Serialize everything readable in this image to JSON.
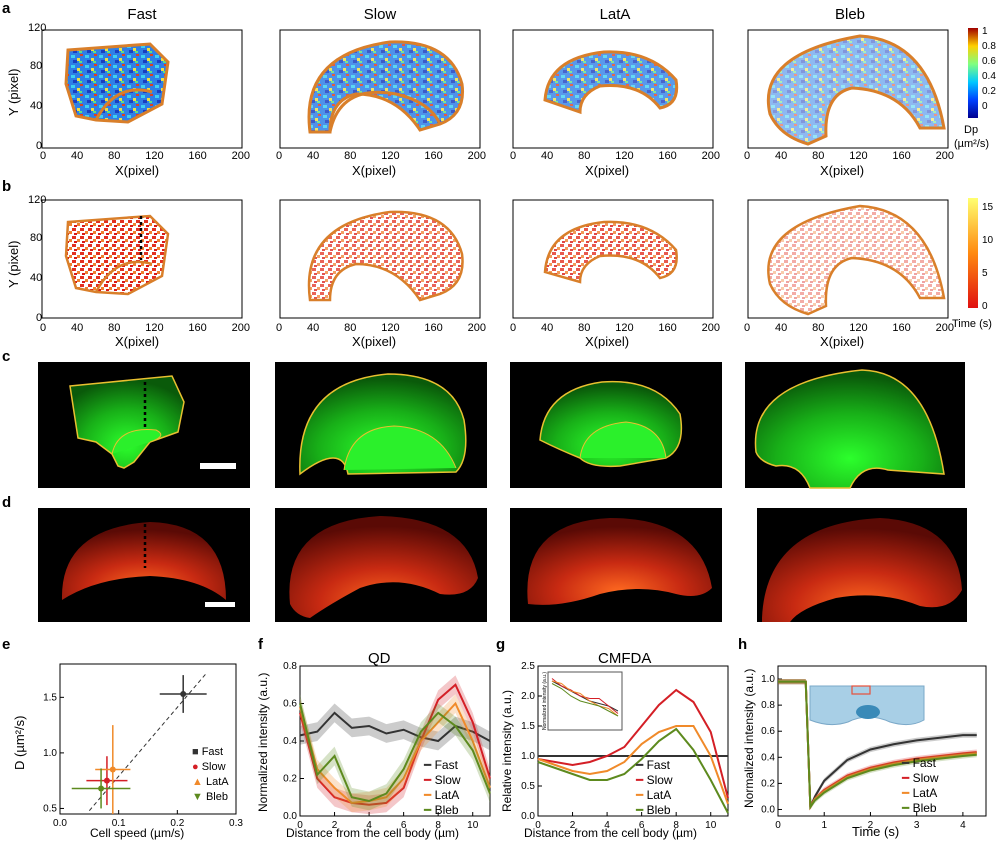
{
  "panels": {
    "a": "a",
    "b": "b",
    "c": "c",
    "d": "d",
    "e": "e",
    "f": "f",
    "g": "g",
    "h": "h"
  },
  "conditions": [
    "Fast",
    "Slow",
    "LatA",
    "Bleb"
  ],
  "colors": {
    "cell_outline": "#d97f2a",
    "fast": "#333333",
    "slow": "#d41f26",
    "latA": "#f08a2a",
    "bleb": "#5d8a1e",
    "fluor_green": "#1fd21f",
    "actin_red": "#e2401e"
  },
  "panel_a": {
    "xlabel": "X(pixel)",
    "ylabel": "Y (pixel)",
    "xticks": [
      "0",
      "40",
      "80",
      "120",
      "160",
      "200"
    ],
    "yticks": [
      "0",
      "40",
      "80",
      "120"
    ],
    "colorbar": {
      "label_line1": "Dp",
      "label_line2": "(µm²/s)",
      "ticks": [
        "0",
        "0.2",
        "0.4",
        "0.6",
        "0.8",
        "1"
      ]
    }
  },
  "panel_b": {
    "xlabel": "X(pixel)",
    "ylabel": "Y (pixel)",
    "xticks": [
      "0",
      "40",
      "80",
      "120",
      "160",
      "200"
    ],
    "yticks": [
      "0",
      "40",
      "80",
      "120"
    ],
    "colorbar": {
      "label": "Time (s)",
      "ticks": [
        "0",
        "5",
        "10",
        "15"
      ]
    }
  },
  "panel_e": {
    "xlabel": "Cell speed (µm/s)",
    "ylabel": "D (µm²/s)",
    "xticks": [
      "0.0",
      "0.1",
      "0.2",
      "0.3"
    ],
    "yticks": [
      "0.5",
      "1.0",
      "1.5"
    ],
    "legend": [
      "Fast",
      "Slow",
      "LatA",
      "Bleb"
    ]
  },
  "panel_f": {
    "title": "QD",
    "xlabel": "Distance from the cell body (µm)",
    "ylabel": "Normalized intensity (a.u.)",
    "xticks": [
      "0",
      "2",
      "4",
      "6",
      "8",
      "10"
    ],
    "yticks": [
      "0.0",
      "0.2",
      "0.4",
      "0.6",
      "0.8"
    ],
    "legend": [
      "Fast",
      "Slow",
      "LatA",
      "Bleb"
    ]
  },
  "panel_g": {
    "title": "CMFDA",
    "xlabel": "Distance from the cell body (µm)",
    "ylabel": "Relative intensity (a.u.)",
    "xticks": [
      "0",
      "2",
      "4",
      "6",
      "8",
      "10"
    ],
    "yticks": [
      "0.0",
      "0.5",
      "1.0",
      "1.5",
      "2.0",
      "2.5"
    ],
    "inset_ylabel": "Normalized intensity (a.u.)",
    "legend": [
      "Fast",
      "Slow",
      "LatA",
      "Bleb"
    ]
  },
  "panel_h": {
    "xlabel": "Time (s)",
    "ylabel": "Normalized intensity (a.u.)",
    "xticks": [
      "0",
      "1",
      "2",
      "3",
      "4"
    ],
    "yticks": [
      "0.0",
      "0.2",
      "0.4",
      "0.6",
      "0.8",
      "1.0"
    ],
    "legend": [
      "Fast",
      "Slow",
      "LatA",
      "Bleb"
    ]
  },
  "chart_data": [
    {
      "type": "scatter",
      "panel": "e",
      "xlabel": "Cell speed (µm/s)",
      "ylabel": "D (µm²/s)",
      "xlim": [
        0,
        0.3
      ],
      "ylim": [
        0.45,
        1.8
      ],
      "series": [
        {
          "name": "Fast",
          "x": [
            0.21
          ],
          "y": [
            1.53
          ],
          "xerr": [
            0.04
          ],
          "yerr": [
            0.17
          ]
        },
        {
          "name": "Slow",
          "x": [
            0.08
          ],
          "y": [
            0.75
          ],
          "xerr": [
            0.035
          ],
          "yerr": [
            0.22
          ]
        },
        {
          "name": "LatA",
          "x": [
            0.09
          ],
          "y": [
            0.85
          ],
          "xerr": [
            0.03
          ],
          "yerr": [
            0.4
          ]
        },
        {
          "name": "Bleb",
          "x": [
            0.07
          ],
          "y": [
            0.68
          ],
          "xerr": [
            0.05
          ],
          "yerr": [
            0.18
          ]
        }
      ],
      "fit_line": {
        "x": [
          0.05,
          0.25
        ],
        "y": [
          0.48,
          1.72
        ]
      }
    },
    {
      "type": "line",
      "panel": "f",
      "title": "QD",
      "xlabel": "Distance from the cell body (µm)",
      "ylabel": "Normalized intensity (a.u.)",
      "xlim": [
        0,
        11
      ],
      "ylim": [
        0,
        0.8
      ],
      "x": [
        0,
        1,
        2,
        3,
        4,
        5,
        6,
        7,
        8,
        9,
        10,
        11
      ],
      "series": [
        {
          "name": "Fast",
          "values": [
            0.43,
            0.45,
            0.55,
            0.47,
            0.48,
            0.44,
            0.46,
            0.42,
            0.4,
            0.48,
            0.45,
            0.4
          ]
        },
        {
          "name": "Slow",
          "values": [
            0.55,
            0.2,
            0.1,
            0.07,
            0.06,
            0.07,
            0.15,
            0.4,
            0.62,
            0.7,
            0.5,
            0.2
          ]
        },
        {
          "name": "LatA",
          "values": [
            0.58,
            0.25,
            0.15,
            0.07,
            0.08,
            0.1,
            0.2,
            0.4,
            0.5,
            0.6,
            0.4,
            0.15
          ]
        },
        {
          "name": "Bleb",
          "values": [
            0.6,
            0.22,
            0.32,
            0.1,
            0.08,
            0.12,
            0.25,
            0.45,
            0.55,
            0.48,
            0.35,
            0.12
          ]
        }
      ]
    },
    {
      "type": "line",
      "panel": "g",
      "title": "CMFDA",
      "xlabel": "Distance from the cell body (µm)",
      "ylabel": "Relative intensity (a.u.)",
      "xlim": [
        0,
        11
      ],
      "ylim": [
        0,
        2.5
      ],
      "x": [
        0,
        1,
        2,
        3,
        4,
        5,
        6,
        7,
        8,
        9,
        10,
        11
      ],
      "series": [
        {
          "name": "Fast",
          "values": [
            1.0,
            1.0,
            1.0,
            1.0,
            1.0,
            1.0,
            1.0,
            1.0,
            1.0,
            1.0,
            1.0,
            1.0
          ]
        },
        {
          "name": "Slow",
          "values": [
            0.95,
            0.9,
            0.85,
            0.9,
            1.0,
            1.15,
            1.5,
            1.85,
            2.1,
            1.9,
            1.4,
            0.3
          ]
        },
        {
          "name": "LatA",
          "values": [
            0.95,
            0.85,
            0.75,
            0.7,
            0.75,
            0.9,
            1.2,
            1.4,
            1.5,
            1.5,
            1.0,
            0.2
          ]
        },
        {
          "name": "Bleb",
          "values": [
            0.9,
            0.8,
            0.7,
            0.6,
            0.6,
            0.7,
            0.95,
            1.25,
            1.45,
            1.1,
            0.6,
            0.05
          ]
        }
      ],
      "inset": {
        "series": [
          "Fast",
          "Slow",
          "LatA",
          "Bleb"
        ]
      }
    },
    {
      "type": "line",
      "panel": "h",
      "xlabel": "Time (s)",
      "ylabel": "Normalized intensity (a.u.)",
      "xlim": [
        0,
        4.5
      ],
      "ylim": [
        -0.05,
        1.1
      ],
      "x": [
        0,
        0.3,
        0.6,
        0.7,
        0.8,
        1.0,
        1.5,
        2.0,
        2.5,
        3.0,
        3.5,
        4.0,
        4.3
      ],
      "series": [
        {
          "name": "Fast",
          "values": [
            0.98,
            0.98,
            0.98,
            0.02,
            0.1,
            0.22,
            0.38,
            0.46,
            0.5,
            0.53,
            0.55,
            0.57,
            0.57
          ]
        },
        {
          "name": "Slow",
          "values": [
            0.98,
            0.98,
            0.98,
            0.02,
            0.08,
            0.15,
            0.26,
            0.32,
            0.36,
            0.39,
            0.41,
            0.43,
            0.44
          ]
        },
        {
          "name": "LatA",
          "values": [
            0.98,
            0.98,
            0.98,
            0.02,
            0.08,
            0.14,
            0.25,
            0.31,
            0.35,
            0.38,
            0.4,
            0.42,
            0.43
          ]
        },
        {
          "name": "Bleb",
          "values": [
            0.98,
            0.98,
            0.98,
            0.02,
            0.07,
            0.13,
            0.24,
            0.3,
            0.34,
            0.37,
            0.39,
            0.41,
            0.42
          ]
        }
      ]
    }
  ]
}
